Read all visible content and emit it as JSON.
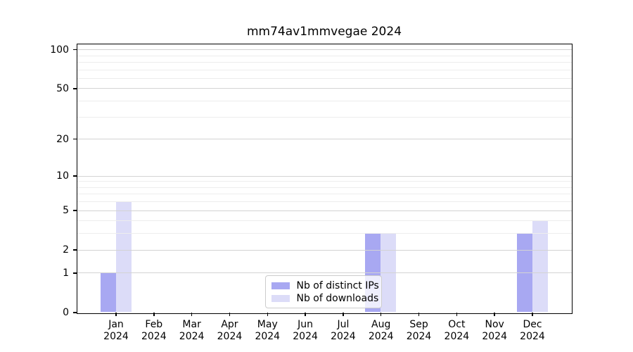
{
  "chart_data": {
    "type": "bar",
    "title": "mm74av1mmvegae 2024",
    "categories": [
      "Jan",
      "Feb",
      "Mar",
      "Apr",
      "May",
      "Jun",
      "Jul",
      "Aug",
      "Sep",
      "Oct",
      "Nov",
      "Dec"
    ],
    "year": "2024",
    "series": [
      {
        "name": "Nb of distinct IPs",
        "color": "#a8a8f2",
        "values": [
          1,
          0,
          0,
          0,
          0,
          0,
          0,
          3,
          0,
          0,
          0,
          3
        ]
      },
      {
        "name": "Nb of downloads",
        "color": "#dcdcf8",
        "values": [
          6,
          0,
          0,
          0,
          0,
          0,
          0,
          3,
          0,
          0,
          0,
          4
        ]
      }
    ],
    "yscale": "log10(value+1)",
    "yticks": [
      0,
      1,
      2,
      5,
      10,
      20,
      50,
      100
    ],
    "grid_minor_levels": [
      3,
      4,
      6,
      7,
      8,
      9,
      30,
      40,
      60,
      70,
      80,
      90
    ],
    "ylim": [
      0,
      110
    ],
    "xlabel": "",
    "ylabel": "",
    "grid": "horizontal",
    "legend": {
      "position": "lower center",
      "items": [
        "Nb of distinct IPs",
        "Nb of downloads"
      ]
    }
  }
}
